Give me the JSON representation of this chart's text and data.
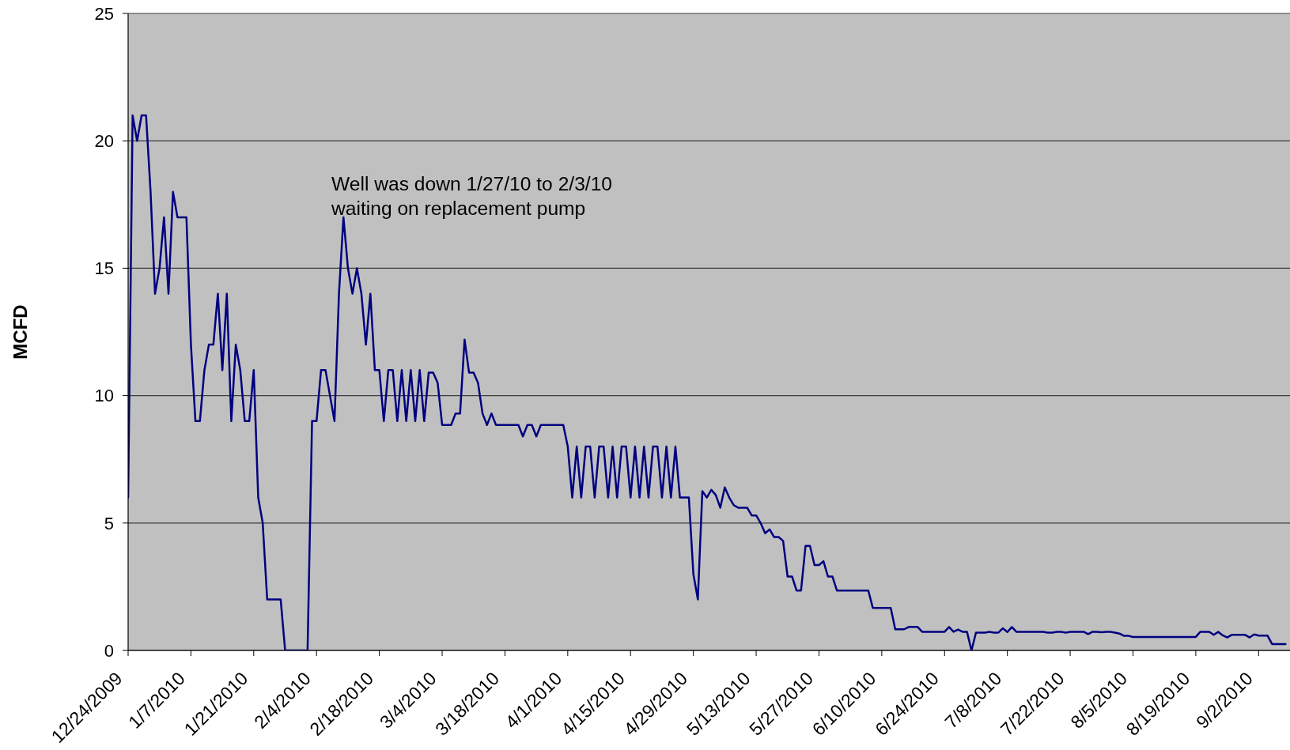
{
  "chart_data": {
    "type": "line",
    "ylabel": "MCFD",
    "annotations": [
      "Well was down 1/27/10 to 2/3/10\nwaiting on replacement pump"
    ],
    "x": [
      "2009-12-24",
      "2009-12-25",
      "2009-12-26",
      "2009-12-27",
      "2009-12-28",
      "2009-12-29",
      "2009-12-30",
      "2009-12-31",
      "2010-01-01",
      "2010-01-02",
      "2010-01-03",
      "2010-01-04",
      "2010-01-06",
      "2010-01-07",
      "2010-01-08",
      "2010-01-09",
      "2010-01-10",
      "2010-01-11",
      "2010-01-12",
      "2010-01-13",
      "2010-01-14",
      "2010-01-15",
      "2010-01-16",
      "2010-01-17",
      "2010-01-18",
      "2010-01-19",
      "2010-01-20",
      "2010-01-21",
      "2010-01-22",
      "2010-01-23",
      "2010-01-24",
      "2010-01-27",
      "2010-01-28",
      "2010-02-02",
      "2010-02-03",
      "2010-02-04",
      "2010-02-05",
      "2010-02-06",
      "2010-02-07",
      "2010-02-08",
      "2010-02-09",
      "2010-02-10",
      "2010-02-11",
      "2010-02-12",
      "2010-02-13",
      "2010-02-14",
      "2010-02-15",
      "2010-02-16",
      "2010-02-17",
      "2010-02-18",
      "2010-02-19",
      "2010-02-20",
      "2010-02-21",
      "2010-02-22",
      "2010-02-23",
      "2010-02-24",
      "2010-02-25",
      "2010-02-26",
      "2010-02-27",
      "2010-02-28",
      "2010-03-01",
      "2010-03-02",
      "2010-03-03",
      "2010-03-04",
      "2010-03-06",
      "2010-03-07",
      "2010-03-08",
      "2010-03-09",
      "2010-03-10",
      "2010-03-11",
      "2010-03-12",
      "2010-03-13",
      "2010-03-14",
      "2010-03-15",
      "2010-03-16",
      "2010-03-21",
      "2010-03-22",
      "2010-03-23",
      "2010-03-24",
      "2010-03-25",
      "2010-03-26",
      "2010-03-31",
      "2010-04-01",
      "2010-04-02",
      "2010-04-03",
      "2010-04-04",
      "2010-04-05",
      "2010-04-06",
      "2010-04-07",
      "2010-04-08",
      "2010-04-09",
      "2010-04-10",
      "2010-04-11",
      "2010-04-12",
      "2010-04-13",
      "2010-04-14",
      "2010-04-15",
      "2010-04-16",
      "2010-04-17",
      "2010-04-18",
      "2010-04-19",
      "2010-04-20",
      "2010-04-21",
      "2010-04-22",
      "2010-04-23",
      "2010-04-24",
      "2010-04-25",
      "2010-04-26",
      "2010-04-28",
      "2010-04-29",
      "2010-04-30",
      "2010-05-01",
      "2010-05-02",
      "2010-05-03",
      "2010-05-04",
      "2010-05-05",
      "2010-05-06",
      "2010-05-07",
      "2010-05-08",
      "2010-05-09",
      "2010-05-11",
      "2010-05-12",
      "2010-05-13",
      "2010-05-14",
      "2010-05-15",
      "2010-05-16",
      "2010-05-17",
      "2010-05-18",
      "2010-05-19",
      "2010-05-20",
      "2010-05-21",
      "2010-05-22",
      "2010-05-23",
      "2010-05-24",
      "2010-05-25",
      "2010-05-26",
      "2010-05-27",
      "2010-05-28",
      "2010-05-29",
      "2010-05-30",
      "2010-05-31",
      "2010-06-07",
      "2010-06-08",
      "2010-06-12",
      "2010-06-13",
      "2010-06-15",
      "2010-06-16",
      "2010-06-18",
      "2010-06-19",
      "2010-06-24",
      "2010-06-25",
      "2010-06-26",
      "2010-06-27",
      "2010-06-28",
      "2010-06-29",
      "2010-06-30",
      "2010-07-01",
      "2010-07-03",
      "2010-07-04",
      "2010-07-05",
      "2010-07-06",
      "2010-07-07",
      "2010-07-08",
      "2010-07-09",
      "2010-07-10",
      "2010-07-16",
      "2010-07-17",
      "2010-07-18",
      "2010-07-19",
      "2010-07-20",
      "2010-07-21",
      "2010-07-22",
      "2010-07-25",
      "2010-07-26",
      "2010-07-27",
      "2010-07-28",
      "2010-07-29",
      "2010-07-30",
      "2010-07-31",
      "2010-08-01",
      "2010-08-02",
      "2010-08-03",
      "2010-08-04",
      "2010-08-05",
      "2010-08-19",
      "2010-08-20",
      "2010-08-22",
      "2010-08-23",
      "2010-08-24",
      "2010-08-25",
      "2010-08-26",
      "2010-08-27",
      "2010-08-30",
      "2010-08-31",
      "2010-09-01",
      "2010-09-02",
      "2010-09-04",
      "2010-09-05",
      "2010-09-08"
    ],
    "series": [
      {
        "color": "#000080",
        "values": [
          6,
          21,
          20,
          21,
          21,
          18,
          14,
          15,
          17,
          14,
          18,
          17,
          17,
          12,
          9,
          9,
          11,
          12,
          12,
          14,
          11,
          14,
          9,
          12,
          11,
          9,
          9,
          11,
          6,
          5,
          2,
          2,
          0,
          0,
          9,
          9,
          11,
          11,
          10,
          9,
          14,
          17,
          15,
          14,
          15,
          14,
          12,
          14,
          11,
          11,
          9,
          11,
          11,
          9,
          11,
          9,
          11,
          9,
          11,
          9,
          10.9,
          10.9,
          10.5,
          8.85,
          8.85,
          9.3,
          9.3,
          12.2,
          10.9,
          10.9,
          10.5,
          9.3,
          8.85,
          9.3,
          8.85,
          8.85,
          8.4,
          8.85,
          8.85,
          8.4,
          8.85,
          8.85,
          8,
          6,
          8,
          6,
          8,
          8,
          6,
          8,
          8,
          6,
          8,
          6,
          8,
          8,
          6,
          8,
          6,
          8,
          6,
          8,
          8,
          6,
          8,
          6,
          8,
          6,
          6,
          3,
          2,
          6.25,
          6,
          6.3,
          6.1,
          5.6,
          6.4,
          6,
          5.7,
          5.6,
          5.6,
          5.3,
          5.3,
          5,
          4.6,
          4.75,
          4.45,
          4.45,
          4.3,
          2.9,
          2.9,
          2.35,
          2.35,
          4.1,
          4.1,
          3.35,
          3.35,
          3.5,
          2.9,
          2.9,
          2.35,
          2.35,
          1.67,
          1.67,
          0.83,
          0.83,
          0.92,
          0.92,
          0.73,
          0.73,
          0.92,
          0.73,
          0.82,
          0.73,
          0.73,
          0,
          0.7,
          0.7,
          0.73,
          0.7,
          0.7,
          0.87,
          0.72,
          0.92,
          0.73,
          0.73,
          0.7,
          0.7,
          0.73,
          0.73,
          0.7,
          0.73,
          0.73,
          0.64,
          0.73,
          0.73,
          0.71,
          0.73,
          0.73,
          0.7,
          0.66,
          0.57,
          0.57,
          0.53,
          0.53,
          0.73,
          0.73,
          0.61,
          0.73,
          0.59,
          0.51,
          0.61,
          0.61,
          0.51,
          0.63,
          0.58,
          0.58,
          0.25,
          0.25
        ]
      }
    ],
    "xlim": [
      "2009-12-24",
      "2010-09-09"
    ],
    "xticks": [
      {
        "value": "2009-12-24",
        "label": "12/24/2009"
      },
      {
        "value": "2010-01-07",
        "label": "1/7/2010"
      },
      {
        "value": "2010-01-21",
        "label": "1/21/2010"
      },
      {
        "value": "2010-02-04",
        "label": "2/4/2010"
      },
      {
        "value": "2010-02-18",
        "label": "2/18/2010"
      },
      {
        "value": "2010-03-04",
        "label": "3/4/2010"
      },
      {
        "value": "2010-03-18",
        "label": "3/18/2010"
      },
      {
        "value": "2010-04-01",
        "label": "4/1/2010"
      },
      {
        "value": "2010-04-15",
        "label": "4/15/2010"
      },
      {
        "value": "2010-04-29",
        "label": "4/29/2010"
      },
      {
        "value": "2010-05-13",
        "label": "5/13/2010"
      },
      {
        "value": "2010-05-27",
        "label": "5/27/2010"
      },
      {
        "value": "2010-06-10",
        "label": "6/10/2010"
      },
      {
        "value": "2010-06-24",
        "label": "6/24/2010"
      },
      {
        "value": "2010-07-08",
        "label": "7/8/2010"
      },
      {
        "value": "2010-07-22",
        "label": "7/22/2010"
      },
      {
        "value": "2010-08-05",
        "label": "8/5/2010"
      },
      {
        "value": "2010-08-19",
        "label": "8/19/2010"
      },
      {
        "value": "2010-09-02",
        "label": "9/2/2010"
      }
    ],
    "ylim": [
      0,
      25
    ],
    "yticks": [
      0,
      5,
      10,
      15,
      20,
      25
    ],
    "grid": "y"
  }
}
